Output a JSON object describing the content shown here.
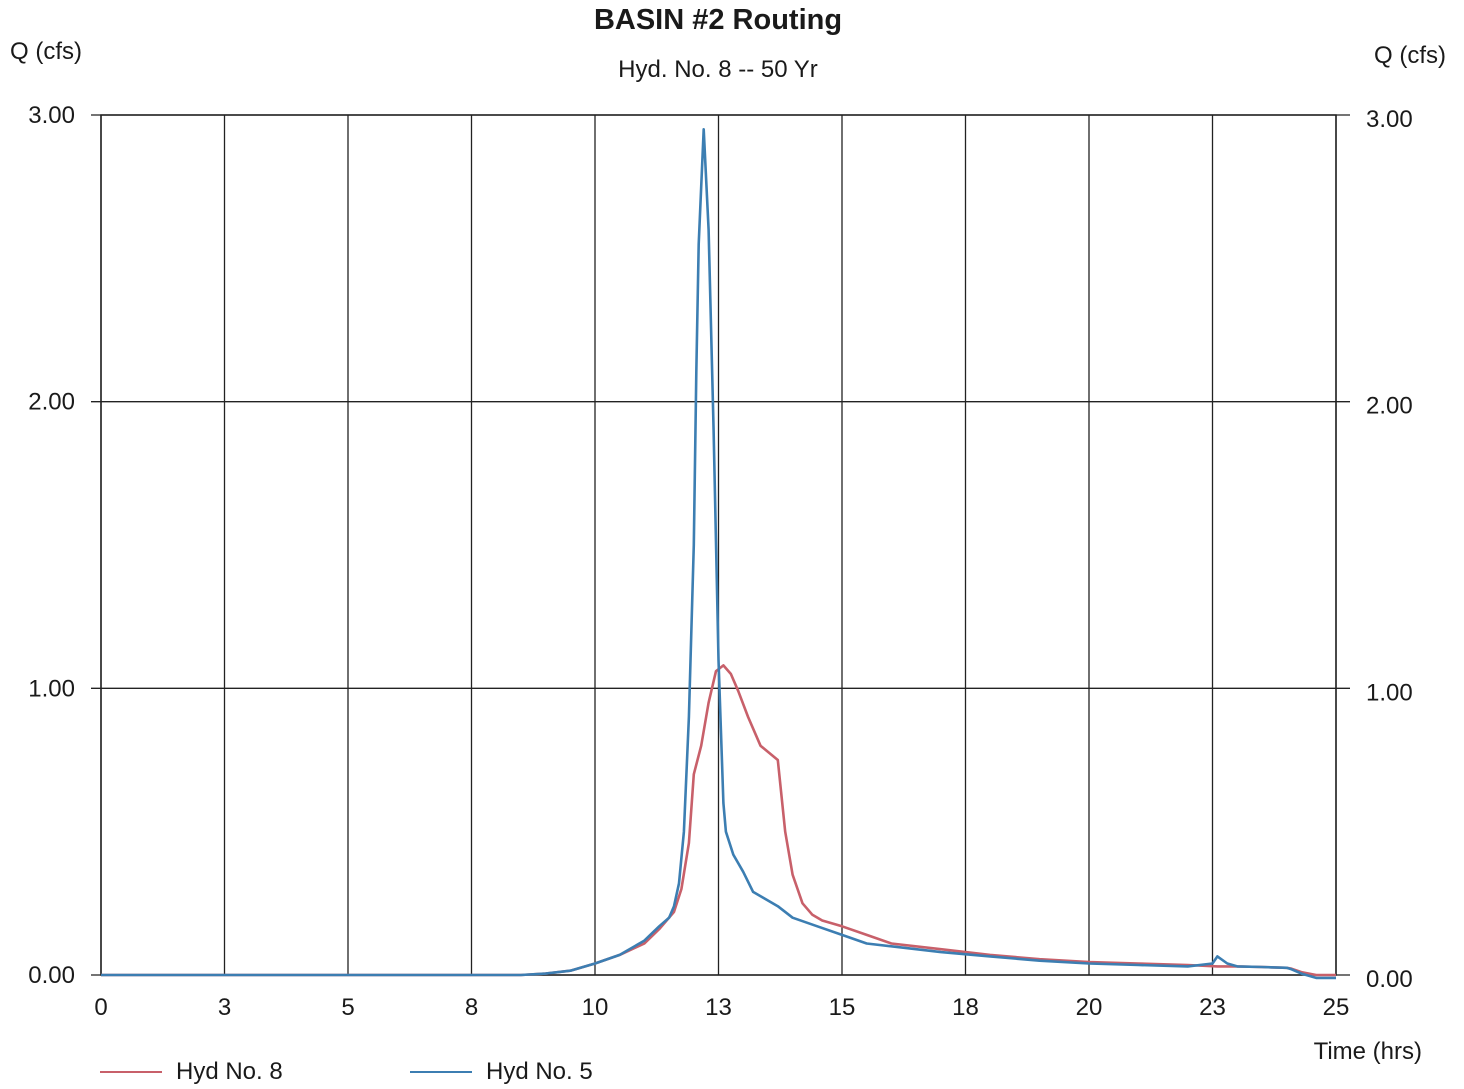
{
  "chart_data": {
    "type": "line",
    "title": "BASIN #2 Routing",
    "subtitle": "Hyd. No. 8 -- 50 Yr",
    "ylabel_left": "Q (cfs)",
    "ylabel_right": "Q (cfs)",
    "xlabel": "Time (hrs)",
    "xlim": [
      0,
      25
    ],
    "ylim": [
      0,
      3
    ],
    "xticks": [
      0,
      2.5,
      5,
      7.5,
      10,
      12.5,
      15,
      17.5,
      20,
      22.5,
      25
    ],
    "xtick_labels": [
      "0",
      "3",
      "5",
      "8",
      "10",
      "13",
      "15",
      "18",
      "20",
      "23",
      "25"
    ],
    "yticks": [
      0,
      1,
      2,
      3
    ],
    "ytick_labels": [
      "0.00",
      "1.00",
      "2.00",
      "3.00"
    ],
    "grid": true,
    "legend_position": "bottom-left",
    "series": [
      {
        "name": "Hyd No. 8",
        "color": "#c8606a",
        "x": [
          0,
          8.5,
          9,
          9.5,
          10,
          10.5,
          11,
          11.3,
          11.6,
          11.75,
          11.9,
          12.0,
          12.15,
          12.3,
          12.45,
          12.6,
          12.75,
          12.9,
          13.1,
          13.35,
          13.7,
          13.85,
          14.0,
          14.2,
          14.4,
          14.6,
          15,
          15.5,
          16,
          17,
          18,
          19,
          20,
          21,
          22,
          22.6,
          22.8,
          23,
          23.5,
          24,
          24.1,
          24.3,
          24.6,
          25
        ],
        "y": [
          0,
          0,
          0.005,
          0.015,
          0.04,
          0.07,
          0.11,
          0.16,
          0.22,
          0.3,
          0.46,
          0.7,
          0.8,
          0.95,
          1.06,
          1.08,
          1.05,
          0.99,
          0.9,
          0.8,
          0.75,
          0.5,
          0.35,
          0.25,
          0.21,
          0.19,
          0.17,
          0.14,
          0.11,
          0.09,
          0.07,
          0.055,
          0.045,
          0.04,
          0.035,
          0.03,
          0.03,
          0.03,
          0.028,
          0.025,
          0.022,
          0.01,
          0.0,
          0.0
        ]
      },
      {
        "name": "Hyd No. 5",
        "color": "#3c7eb2",
        "x": [
          0,
          8.5,
          9,
          9.5,
          10,
          10.5,
          11,
          11.3,
          11.5,
          11.6,
          11.7,
          11.8,
          11.9,
          12.0,
          12.05,
          12.1,
          12.2,
          12.3,
          12.4,
          12.5,
          12.6,
          12.65,
          12.8,
          13.0,
          13.2,
          13.4,
          13.7,
          14,
          14.5,
          15,
          15.5,
          16,
          17,
          18,
          19,
          20,
          21,
          22,
          22.5,
          22.6,
          22.8,
          23,
          23.5,
          24,
          24.1,
          24.3,
          24.6,
          25
        ],
        "y": [
          0,
          0,
          0.005,
          0.015,
          0.04,
          0.07,
          0.12,
          0.17,
          0.2,
          0.24,
          0.32,
          0.5,
          0.9,
          1.5,
          2.1,
          2.55,
          2.95,
          2.6,
          1.9,
          1.1,
          0.6,
          0.5,
          0.42,
          0.36,
          0.29,
          0.27,
          0.24,
          0.2,
          0.17,
          0.14,
          0.11,
          0.1,
          0.08,
          0.065,
          0.05,
          0.04,
          0.035,
          0.03,
          0.04,
          0.065,
          0.04,
          0.03,
          0.028,
          0.025,
          0.02,
          0.005,
          -0.01,
          -0.01
        ]
      }
    ]
  }
}
